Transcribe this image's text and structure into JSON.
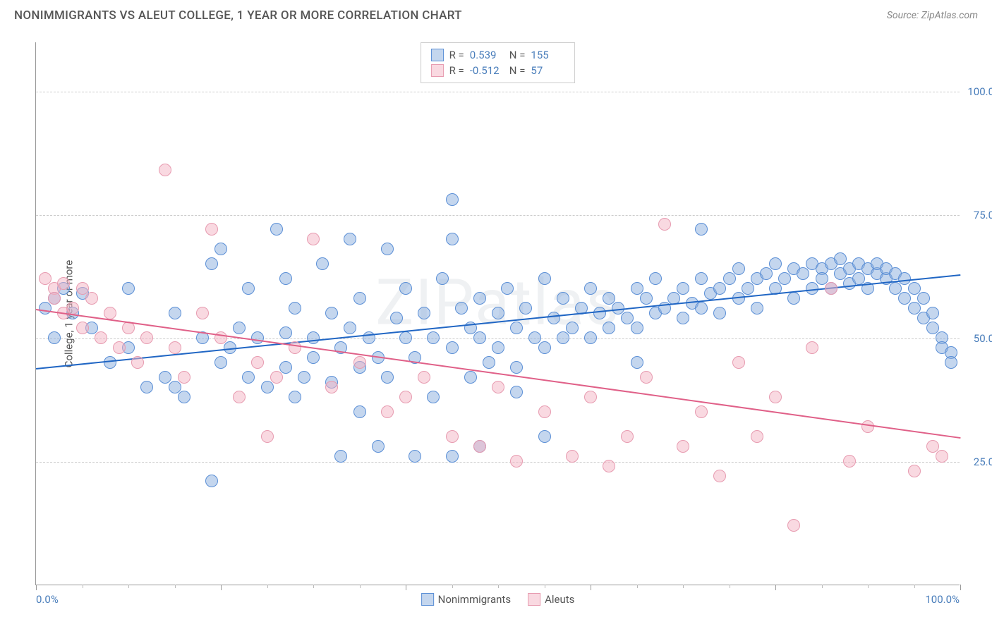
{
  "header": {
    "title": "NONIMMIGRANTS VS ALEUT COLLEGE, 1 YEAR OR MORE CORRELATION CHART",
    "source": "Source: ZipAtlas.com"
  },
  "watermark": "ZIPatlas",
  "chart": {
    "type": "scatter",
    "background_color": "#ffffff",
    "grid_color": "#cccccc",
    "axis_color": "#999999",
    "yaxis_title": "College, 1 year or more",
    "xlim": [
      0,
      100
    ],
    "ylim": [
      0,
      110
    ],
    "yticks": [
      25,
      50,
      75,
      100
    ],
    "ytick_labels": [
      "25.0%",
      "50.0%",
      "75.0%",
      "100.0%"
    ],
    "xaxis_left": "0.0%",
    "xaxis_right": "100.0%",
    "xticks_major": [
      0,
      20,
      40,
      60,
      80,
      100
    ],
    "xticks_minor": [
      5,
      10,
      15,
      25,
      30,
      35,
      45,
      50,
      55,
      65,
      70,
      75,
      85,
      90,
      95
    ],
    "point_radius": 9,
    "point_opacity": 0.55,
    "label_fontsize": 15,
    "tick_color": "#4a7ebb"
  },
  "series": [
    {
      "name": "Nonimmigrants",
      "color_fill": "rgba(137,173,222,0.5)",
      "color_stroke": "#5b8fd6",
      "trend_color": "#2066c4",
      "R": "0.539",
      "N": "155",
      "trend": {
        "x1": 0,
        "y1": 44,
        "x2": 100,
        "y2": 63
      },
      "points": [
        [
          1,
          56
        ],
        [
          2,
          58
        ],
        [
          2,
          50
        ],
        [
          3,
          60
        ],
        [
          4,
          55
        ],
        [
          5,
          59
        ],
        [
          6,
          52
        ],
        [
          8,
          45
        ],
        [
          10,
          48
        ],
        [
          12,
          40
        ],
        [
          14,
          42
        ],
        [
          15,
          55
        ],
        [
          16,
          38
        ],
        [
          18,
          50
        ],
        [
          19,
          21
        ],
        [
          20,
          45
        ],
        [
          20,
          68
        ],
        [
          21,
          48
        ],
        [
          22,
          52
        ],
        [
          23,
          42
        ],
        [
          24,
          50
        ],
        [
          25,
          40
        ],
        [
          26,
          72
        ],
        [
          27,
          51
        ],
        [
          27,
          44
        ],
        [
          28,
          38
        ],
        [
          28,
          56
        ],
        [
          29,
          42
        ],
        [
          30,
          50
        ],
        [
          30,
          46
        ],
        [
          31,
          65
        ],
        [
          32,
          55
        ],
        [
          32,
          41
        ],
        [
          33,
          48
        ],
        [
          34,
          52
        ],
        [
          34,
          70
        ],
        [
          35,
          44
        ],
        [
          35,
          58
        ],
        [
          36,
          50
        ],
        [
          37,
          46
        ],
        [
          38,
          68
        ],
        [
          38,
          42
        ],
        [
          39,
          54
        ],
        [
          40,
          50
        ],
        [
          40,
          60
        ],
        [
          41,
          26
        ],
        [
          41,
          46
        ],
        [
          42,
          55
        ],
        [
          43,
          50
        ],
        [
          43,
          38
        ],
        [
          44,
          62
        ],
        [
          45,
          48
        ],
        [
          45,
          78
        ],
        [
          46,
          56
        ],
        [
          47,
          52
        ],
        [
          47,
          42
        ],
        [
          48,
          58
        ],
        [
          48,
          50
        ],
        [
          49,
          45
        ],
        [
          50,
          55
        ],
        [
          50,
          48
        ],
        [
          51,
          60
        ],
        [
          52,
          52
        ],
        [
          52,
          44
        ],
        [
          53,
          56
        ],
        [
          54,
          50
        ],
        [
          55,
          62
        ],
        [
          55,
          48
        ],
        [
          56,
          54
        ],
        [
          57,
          50
        ],
        [
          57,
          58
        ],
        [
          58,
          52
        ],
        [
          59,
          56
        ],
        [
          60,
          50
        ],
        [
          60,
          60
        ],
        [
          61,
          55
        ],
        [
          62,
          52
        ],
        [
          62,
          58
        ],
        [
          63,
          56
        ],
        [
          64,
          54
        ],
        [
          65,
          60
        ],
        [
          65,
          52
        ],
        [
          66,
          58
        ],
        [
          67,
          55
        ],
        [
          67,
          62
        ],
        [
          68,
          56
        ],
        [
          69,
          58
        ],
        [
          70,
          60
        ],
        [
          70,
          54
        ],
        [
          71,
          57
        ],
        [
          72,
          62
        ],
        [
          72,
          56
        ],
        [
          73,
          59
        ],
        [
          74,
          60
        ],
        [
          74,
          55
        ],
        [
          75,
          62
        ],
        [
          76,
          58
        ],
        [
          76,
          64
        ],
        [
          77,
          60
        ],
        [
          78,
          62
        ],
        [
          78,
          56
        ],
        [
          79,
          63
        ],
        [
          80,
          60
        ],
        [
          80,
          65
        ],
        [
          81,
          62
        ],
        [
          82,
          64
        ],
        [
          82,
          58
        ],
        [
          83,
          63
        ],
        [
          84,
          65
        ],
        [
          84,
          60
        ],
        [
          85,
          64
        ],
        [
          85,
          62
        ],
        [
          86,
          65
        ],
        [
          86,
          60
        ],
        [
          87,
          63
        ],
        [
          87,
          66
        ],
        [
          88,
          64
        ],
        [
          88,
          61
        ],
        [
          89,
          65
        ],
        [
          89,
          62
        ],
        [
          90,
          64
        ],
        [
          90,
          60
        ],
        [
          91,
          63
        ],
        [
          91,
          65
        ],
        [
          92,
          62
        ],
        [
          92,
          64
        ],
        [
          93,
          63
        ],
        [
          93,
          60
        ],
        [
          94,
          62
        ],
        [
          94,
          58
        ],
        [
          95,
          60
        ],
        [
          95,
          56
        ],
        [
          96,
          58
        ],
        [
          96,
          54
        ],
        [
          97,
          55
        ],
        [
          97,
          52
        ],
        [
          98,
          50
        ],
        [
          98,
          48
        ],
        [
          99,
          47
        ],
        [
          99,
          45
        ],
        [
          33,
          26
        ],
        [
          37,
          28
        ],
        [
          45,
          26
        ],
        [
          48,
          28
        ],
        [
          52,
          39
        ],
        [
          55,
          30
        ],
        [
          19,
          65
        ],
        [
          23,
          60
        ],
        [
          27,
          62
        ],
        [
          72,
          72
        ],
        [
          10,
          60
        ],
        [
          15,
          40
        ],
        [
          35,
          35
        ],
        [
          45,
          70
        ],
        [
          65,
          45
        ]
      ]
    },
    {
      "name": "Aleuts",
      "color_fill": "rgba(244,180,196,0.5)",
      "color_stroke": "#e79bb0",
      "trend_color": "#e06088",
      "R": "-0.512",
      "N": "57",
      "trend": {
        "x1": 0,
        "y1": 56,
        "x2": 100,
        "y2": 30
      },
      "points": [
        [
          1,
          62
        ],
        [
          2,
          60
        ],
        [
          2,
          58
        ],
        [
          3,
          55
        ],
        [
          3,
          61
        ],
        [
          4,
          56
        ],
        [
          5,
          60
        ],
        [
          5,
          52
        ],
        [
          6,
          58
        ],
        [
          7,
          50
        ],
        [
          8,
          55
        ],
        [
          9,
          48
        ],
        [
          10,
          52
        ],
        [
          11,
          45
        ],
        [
          12,
          50
        ],
        [
          14,
          84
        ],
        [
          15,
          48
        ],
        [
          16,
          42
        ],
        [
          18,
          55
        ],
        [
          19,
          72
        ],
        [
          20,
          50
        ],
        [
          22,
          38
        ],
        [
          24,
          45
        ],
        [
          25,
          30
        ],
        [
          26,
          42
        ],
        [
          28,
          48
        ],
        [
          30,
          70
        ],
        [
          32,
          40
        ],
        [
          35,
          45
        ],
        [
          38,
          35
        ],
        [
          40,
          38
        ],
        [
          42,
          42
        ],
        [
          45,
          30
        ],
        [
          48,
          28
        ],
        [
          50,
          40
        ],
        [
          52,
          25
        ],
        [
          55,
          35
        ],
        [
          58,
          26
        ],
        [
          60,
          38
        ],
        [
          62,
          24
        ],
        [
          64,
          30
        ],
        [
          66,
          42
        ],
        [
          68,
          73
        ],
        [
          70,
          28
        ],
        [
          72,
          35
        ],
        [
          74,
          22
        ],
        [
          76,
          45
        ],
        [
          78,
          30
        ],
        [
          80,
          38
        ],
        [
          82,
          12
        ],
        [
          84,
          48
        ],
        [
          86,
          60
        ],
        [
          88,
          25
        ],
        [
          90,
          32
        ],
        [
          95,
          23
        ],
        [
          97,
          28
        ],
        [
          98,
          26
        ]
      ]
    }
  ],
  "legend": {
    "bottom_items": [
      "Nonimmigrants",
      "Aleuts"
    ]
  }
}
